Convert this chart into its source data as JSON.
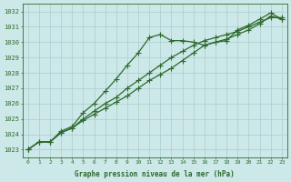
{
  "x": [
    0,
    1,
    2,
    3,
    4,
    5,
    6,
    7,
    8,
    9,
    10,
    11,
    12,
    13,
    14,
    15,
    16,
    17,
    18,
    19,
    20,
    21,
    22,
    23
  ],
  "line1_peaked": [
    1023.0,
    1023.5,
    1023.5,
    1024.2,
    1024.5,
    1025.4,
    1026.0,
    1026.8,
    1027.6,
    1028.5,
    1029.3,
    1030.3,
    1030.5,
    1030.1,
    1030.1,
    1030.0,
    1029.8,
    1030.0,
    1030.1,
    1030.8,
    1031.1,
    1031.5,
    1031.9,
    1031.5
  ],
  "line2_linear": [
    1023.0,
    1023.5,
    1023.5,
    1024.1,
    1024.4,
    1025.0,
    1025.5,
    1026.0,
    1026.4,
    1027.0,
    1027.5,
    1028.0,
    1028.5,
    1029.0,
    1029.4,
    1029.8,
    1030.1,
    1030.3,
    1030.5,
    1030.7,
    1031.0,
    1031.3,
    1031.6,
    1031.6
  ],
  "line3_linear": [
    1023.0,
    1023.5,
    1023.5,
    1024.1,
    1024.4,
    1024.9,
    1025.3,
    1025.7,
    1026.1,
    1026.5,
    1027.0,
    1027.5,
    1027.9,
    1028.3,
    1028.8,
    1029.3,
    1029.8,
    1030.0,
    1030.2,
    1030.5,
    1030.8,
    1031.2,
    1031.7,
    1031.5
  ],
  "ylim": [
    1022.5,
    1032.5
  ],
  "yticks": [
    1023,
    1024,
    1025,
    1026,
    1027,
    1028,
    1029,
    1030,
    1031,
    1032
  ],
  "xticks": [
    0,
    1,
    2,
    3,
    4,
    5,
    6,
    7,
    8,
    9,
    10,
    11,
    12,
    13,
    14,
    15,
    16,
    17,
    18,
    19,
    20,
    21,
    22,
    23
  ],
  "xlabel": "Graphe pression niveau de la mer (hPa)",
  "line_color": "#2d6a2d",
  "bg_color": "#cce8e8",
  "grid_color": "#aacece",
  "marker": "+",
  "marker_size": 4,
  "linewidth": 0.9,
  "title_color": "#2d6a2d"
}
